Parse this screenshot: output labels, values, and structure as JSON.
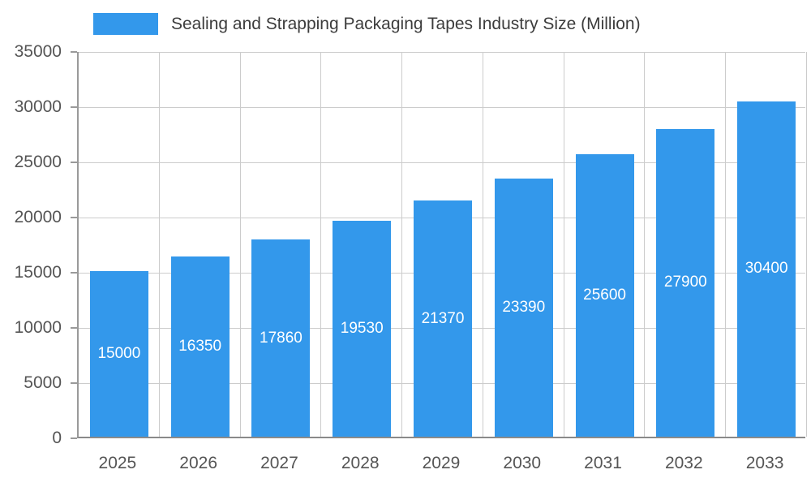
{
  "chart_data": {
    "type": "bar",
    "title": "Sealing and Strapping Packaging Tapes Industry Size (Million)",
    "categories": [
      "2025",
      "2026",
      "2027",
      "2028",
      "2029",
      "2030",
      "2031",
      "2032",
      "2033"
    ],
    "values": [
      15000,
      16350,
      17860,
      19530,
      21370,
      23390,
      25600,
      27900,
      30400
    ],
    "series_name": "Sealing and Strapping Packaging Tapes Industry Size (Million)",
    "xlabel": "",
    "ylabel": "",
    "ylim": [
      0,
      35000
    ],
    "yticks": [
      0,
      5000,
      10000,
      15000,
      20000,
      25000,
      30000,
      35000
    ],
    "grid": true,
    "legend_position": "top",
    "colors": {
      "bar": "#3398EB",
      "value_label": "#ffffff",
      "axis_label": "#555555",
      "grid": "#cccccc",
      "tick": "#9a9a9a"
    }
  }
}
